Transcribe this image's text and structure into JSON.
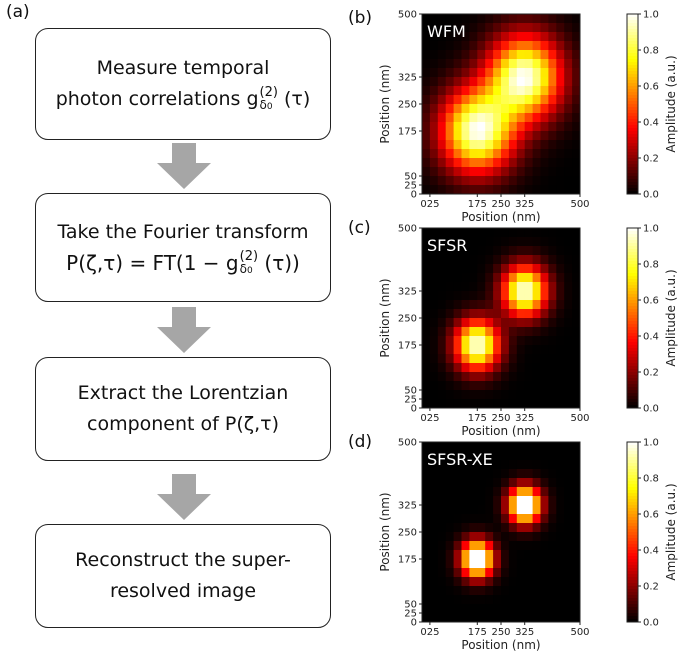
{
  "labels": {
    "a": "(a)",
    "b": "(b)",
    "c": "(c)",
    "d": "(d)"
  },
  "steps": [
    {
      "line1": "Measure temporal",
      "line2_prefix": "photon correlations g",
      "sup": "(2)",
      "sub": "δ",
      "subsub": "0",
      "suffix": " (τ)"
    },
    {
      "line1": "Take the Fourier transform",
      "eq_prefix": "P(ζ,τ) = FT(1 − g",
      "sup": "(2)",
      "sub": "δ",
      "subsub": "0",
      "eq_suffix": " (τ))"
    },
    {
      "line1": "Extract the Lorentzian",
      "line2": "component of P(ζ,τ)"
    },
    {
      "line1": "Reconstruct the super-",
      "line2": "resolved image"
    }
  ],
  "heatmaps": [
    {
      "title": "WFM",
      "sigma": 3.2,
      "peak": 1.0
    },
    {
      "title": "SFSR",
      "sigma": 1.95,
      "peak": 0.92
    },
    {
      "title": "SFSR-XE",
      "sigma": 1.4,
      "peak": 1.0
    }
  ],
  "axes": {
    "xlabel": "Position (nm)",
    "ylabel": "Position (nm)",
    "xticks": [
      "025",
      "175",
      "250",
      "325",
      "500"
    ],
    "yticks": [
      "500",
      "325",
      "250",
      "175",
      "50",
      "25",
      "0"
    ],
    "grid_size": 20,
    "emitters_nm": [
      [
        175,
        175
      ],
      [
        325,
        325
      ]
    ]
  },
  "colorbar": {
    "label": "Amplitude (a.u.)",
    "ticks": [
      "0.0",
      "0.2",
      "0.4",
      "0.6",
      "0.8",
      "1.0"
    ],
    "colormap": "hot",
    "range": [
      0,
      1
    ]
  }
}
